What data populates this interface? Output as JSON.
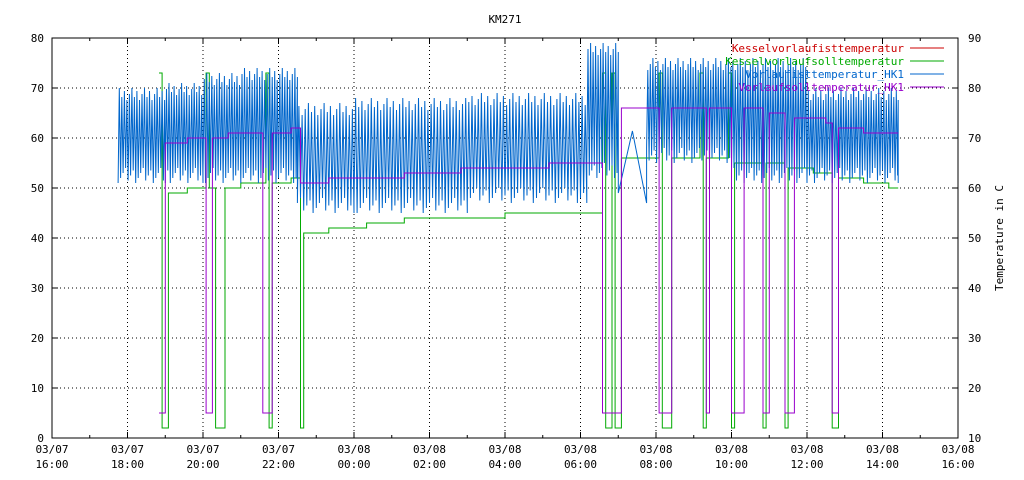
{
  "chart_data": {
    "type": "line",
    "title": "KM271",
    "xlabel": "",
    "ylabel": "",
    "y2label": "Temperature in C",
    "xlim": [
      "03/07 16:00",
      "03/08 16:00"
    ],
    "ylim": [
      0,
      80
    ],
    "y2lim": [
      10,
      90
    ],
    "grid": true,
    "legend_position": "top-right",
    "x_ticks": [
      {
        "date": "03/07",
        "time": "16:00"
      },
      {
        "date": "03/07",
        "time": "18:00"
      },
      {
        "date": "03/07",
        "time": "20:00"
      },
      {
        "date": "03/07",
        "time": "22:00"
      },
      {
        "date": "03/08",
        "time": "00:00"
      },
      {
        "date": "03/08",
        "time": "02:00"
      },
      {
        "date": "03/08",
        "time": "04:00"
      },
      {
        "date": "03/08",
        "time": "06:00"
      },
      {
        "date": "03/08",
        "time": "08:00"
      },
      {
        "date": "03/08",
        "time": "10:00"
      },
      {
        "date": "03/08",
        "time": "12:00"
      },
      {
        "date": "03/08",
        "time": "14:00"
      },
      {
        "date": "03/08",
        "time": "16:00"
      }
    ],
    "y_ticks": [
      0,
      10,
      20,
      30,
      40,
      50,
      60,
      70,
      80
    ],
    "y2_ticks": [
      10,
      20,
      30,
      40,
      50,
      60,
      70,
      80,
      90
    ],
    "series": [
      {
        "name": "Kesselvorlaufisttemperatur",
        "color": "#cc0000",
        "points": []
      },
      {
        "name": "Kesselvorlaufsolltemperatur",
        "color": "#00aa00",
        "points": [
          [
            "03/07 18:50",
            73
          ],
          [
            "03/07 18:55",
            73
          ],
          [
            "03/07 18:55",
            2
          ],
          [
            "03/07 19:05",
            2
          ],
          [
            "03/07 19:05",
            49
          ],
          [
            "03/07 19:35",
            49
          ],
          [
            "03/07 19:35",
            50
          ],
          [
            "03/07 20:05",
            50
          ],
          [
            "03/07 20:05",
            73
          ],
          [
            "03/07 20:10",
            73
          ],
          [
            "03/07 20:10",
            50
          ],
          [
            "03/07 20:20",
            50
          ],
          [
            "03/07 20:20",
            2
          ],
          [
            "03/07 20:35",
            2
          ],
          [
            "03/07 20:35",
            50
          ],
          [
            "03/07 21:00",
            50
          ],
          [
            "03/07 21:00",
            51
          ],
          [
            "03/07 21:40",
            51
          ],
          [
            "03/07 21:40",
            73
          ],
          [
            "03/07 21:45",
            73
          ],
          [
            "03/07 21:45",
            2
          ],
          [
            "03/07 21:50",
            2
          ],
          [
            "03/07 21:50",
            51
          ],
          [
            "03/07 22:20",
            51
          ],
          [
            "03/07 22:20",
            52
          ],
          [
            "03/07 22:35",
            52
          ],
          [
            "03/07 22:35",
            2
          ],
          [
            "03/07 22:40",
            2
          ],
          [
            "03/07 22:40",
            41
          ],
          [
            "03/07 23:20",
            41
          ],
          [
            "03/07 23:20",
            42
          ],
          [
            "03/08 00:20",
            42
          ],
          [
            "03/08 00:20",
            43
          ],
          [
            "03/08 01:20",
            43
          ],
          [
            "03/08 01:20",
            44
          ],
          [
            "03/08 04:00",
            44
          ],
          [
            "03/08 04:00",
            45
          ],
          [
            "03/08 06:35",
            45
          ],
          [
            "03/08 06:35",
            73
          ],
          [
            "03/08 06:40",
            73
          ],
          [
            "03/08 06:40",
            2
          ],
          [
            "03/08 06:50",
            2
          ],
          [
            "03/08 06:50",
            73
          ],
          [
            "03/08 06:55",
            73
          ],
          [
            "03/08 06:55",
            2
          ],
          [
            "03/08 07:05",
            2
          ],
          [
            "03/08 07:05",
            56
          ],
          [
            "03/08 08:05",
            56
          ],
          [
            "03/08 08:05",
            73
          ],
          [
            "03/08 08:10",
            73
          ],
          [
            "03/08 08:10",
            2
          ],
          [
            "03/08 08:25",
            2
          ],
          [
            "03/08 08:25",
            56
          ],
          [
            "03/08 09:10",
            56
          ],
          [
            "03/08 09:10",
            73
          ],
          [
            "03/08 09:15",
            73
          ],
          [
            "03/08 09:15",
            2
          ],
          [
            "03/08 09:20",
            2
          ],
          [
            "03/08 09:20",
            56
          ],
          [
            "03/08 09:55",
            56
          ],
          [
            "03/08 09:55",
            73
          ],
          [
            "03/08 10:00",
            73
          ],
          [
            "03/08 10:00",
            2
          ],
          [
            "03/08 10:05",
            2
          ],
          [
            "03/08 10:05",
            55
          ],
          [
            "03/08 10:50",
            55
          ],
          [
            "03/08 10:50",
            2
          ],
          [
            "03/08 10:55",
            2
          ],
          [
            "03/08 10:55",
            55
          ],
          [
            "03/08 11:25",
            55
          ],
          [
            "03/08 11:25",
            2
          ],
          [
            "03/08 11:30",
            2
          ],
          [
            "03/08 11:30",
            54
          ],
          [
            "03/08 12:10",
            54
          ],
          [
            "03/08 12:10",
            53
          ],
          [
            "03/08 12:40",
            53
          ],
          [
            "03/08 12:40",
            2
          ],
          [
            "03/08 12:50",
            2
          ],
          [
            "03/08 12:50",
            52
          ],
          [
            "03/08 13:30",
            52
          ],
          [
            "03/08 13:30",
            51
          ],
          [
            "03/08 14:10",
            51
          ],
          [
            "03/08 14:10",
            50
          ],
          [
            "03/08 14:25",
            50
          ]
        ]
      },
      {
        "name": "Vorlaufisttemperatur_HK1",
        "color": "#0066cc",
        "oscillations": [
          {
            "from": "03/07 17:45",
            "to": "03/07 19:00",
            "low": 51,
            "high": 70,
            "period_min": 4
          },
          {
            "from": "03/07 19:00",
            "to": "03/07 20:00",
            "low": 51,
            "high": 71,
            "period_min": 4
          },
          {
            "from": "03/07 20:00",
            "to": "03/07 21:00",
            "low": 51,
            "high": 73,
            "period_min": 4
          },
          {
            "from": "03/07 21:00",
            "to": "03/07 22:30",
            "low": 51,
            "high": 74,
            "period_min": 4
          },
          {
            "from": "03/07 22:30",
            "to": "03/08 00:00",
            "low": 45,
            "high": 67,
            "period_min": 5
          },
          {
            "from": "03/08 00:00",
            "to": "03/08 03:00",
            "low": 45,
            "high": 68,
            "period_min": 5
          },
          {
            "from": "03/08 03:00",
            "to": "03/08 06:10",
            "low": 47,
            "high": 69,
            "period_min": 5
          },
          {
            "from": "03/08 06:10",
            "to": "03/08 07:00",
            "low": 52,
            "high": 79,
            "period_min": 4
          },
          {
            "from": "03/08 07:00",
            "to": "03/08 07:45",
            "low": 47,
            "high": 62,
            "period_min": 45
          },
          {
            "from": "03/08 07:45",
            "to": "03/08 10:00",
            "low": 55,
            "high": 76,
            "period_min": 4
          },
          {
            "from": "03/08 10:00",
            "to": "03/08 12:00",
            "low": 51,
            "high": 76,
            "period_min": 4
          },
          {
            "from": "03/08 12:00",
            "to": "03/08 14:25",
            "low": 51,
            "high": 70,
            "period_min": 4
          }
        ]
      },
      {
        "name": "Vorlaufsolltemperatur_HK1",
        "color": "#9900cc",
        "points": [
          [
            "03/07 18:50",
            5
          ],
          [
            "03/07 19:00",
            5
          ],
          [
            "03/07 19:00",
            59
          ],
          [
            "03/07 19:35",
            59
          ],
          [
            "03/07 19:35",
            60
          ],
          [
            "03/07 20:05",
            60
          ],
          [
            "03/07 20:05",
            5
          ],
          [
            "03/07 20:15",
            5
          ],
          [
            "03/07 20:15",
            60
          ],
          [
            "03/07 20:40",
            60
          ],
          [
            "03/07 20:40",
            61
          ],
          [
            "03/07 21:35",
            61
          ],
          [
            "03/07 21:35",
            5
          ],
          [
            "03/07 21:50",
            5
          ],
          [
            "03/07 21:50",
            61
          ],
          [
            "03/07 22:20",
            61
          ],
          [
            "03/07 22:20",
            62
          ],
          [
            "03/07 22:35",
            62
          ],
          [
            "03/07 22:35",
            51
          ],
          [
            "03/07 23:20",
            51
          ],
          [
            "03/07 23:20",
            52
          ],
          [
            "03/08 01:20",
            52
          ],
          [
            "03/08 01:20",
            53
          ],
          [
            "03/08 02:50",
            53
          ],
          [
            "03/08 02:50",
            54
          ],
          [
            "03/08 05:10",
            54
          ],
          [
            "03/08 05:10",
            55
          ],
          [
            "03/08 06:35",
            55
          ],
          [
            "03/08 06:35",
            5
          ],
          [
            "03/08 07:05",
            5
          ],
          [
            "03/08 07:05",
            66
          ],
          [
            "03/08 08:05",
            66
          ],
          [
            "03/08 08:05",
            5
          ],
          [
            "03/08 08:25",
            5
          ],
          [
            "03/08 08:25",
            66
          ],
          [
            "03/08 09:20",
            66
          ],
          [
            "03/08 09:20",
            5
          ],
          [
            "03/08 09:25",
            5
          ],
          [
            "03/08 09:25",
            66
          ],
          [
            "03/08 10:00",
            66
          ],
          [
            "03/08 10:00",
            5
          ],
          [
            "03/08 10:20",
            5
          ],
          [
            "03/08 10:20",
            66
          ],
          [
            "03/08 10:50",
            66
          ],
          [
            "03/08 10:50",
            5
          ],
          [
            "03/08 11:00",
            5
          ],
          [
            "03/08 11:00",
            65
          ],
          [
            "03/08 11:25",
            65
          ],
          [
            "03/08 11:25",
            5
          ],
          [
            "03/08 11:40",
            5
          ],
          [
            "03/08 11:40",
            64
          ],
          [
            "03/08 12:30",
            64
          ],
          [
            "03/08 12:30",
            63
          ],
          [
            "03/08 12:40",
            63
          ],
          [
            "03/08 12:40",
            5
          ],
          [
            "03/08 12:50",
            5
          ],
          [
            "03/08 12:50",
            62
          ],
          [
            "03/08 13:30",
            62
          ],
          [
            "03/08 13:30",
            61
          ],
          [
            "03/08 14:25",
            61
          ]
        ]
      }
    ]
  }
}
